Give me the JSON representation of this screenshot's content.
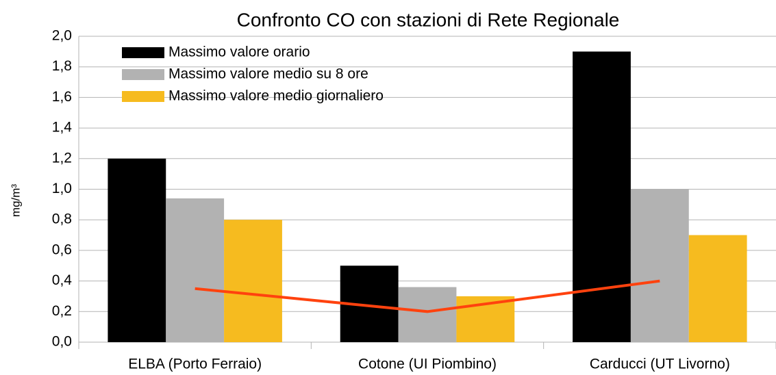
{
  "chart_data": {
    "type": "bar",
    "title": "Confronto CO con stazioni di Rete Regionale",
    "y_label": "mg/m³",
    "categories": [
      "ELBA (Porto Ferraio)",
      "Cotone (UI Piombino)",
      "Carducci (UT Livorno)"
    ],
    "series": [
      {
        "name": "Massimo valore orario",
        "color": "#000000",
        "values": [
          1.2,
          0.5,
          1.9
        ]
      },
      {
        "name": "Massimo valore medio su 8 ore",
        "color": "#b2b2b2",
        "values": [
          0.94,
          0.36,
          1.0
        ]
      },
      {
        "name": "Massimo valore medio giornaliero",
        "color": "#f6bb1f",
        "values": [
          0.8,
          0.3,
          0.7
        ]
      },
      {
        "type": "line",
        "color": "#ff420e",
        "values": [
          0.35,
          0.2,
          0.4
        ]
      }
    ],
    "ylim": [
      0,
      2
    ],
    "yticks": [
      {
        "value": 0,
        "label": "0,0"
      },
      {
        "value": 0.2,
        "label": "0,2"
      },
      {
        "value": 0.4,
        "label": "0,4"
      },
      {
        "value": 0.6,
        "label": "0,6"
      },
      {
        "value": 0.8,
        "label": "0,8"
      },
      {
        "value": 1.0,
        "label": "1,0"
      },
      {
        "value": 1.2,
        "label": "1,2"
      },
      {
        "value": 1.4,
        "label": "1,4"
      },
      {
        "value": 1.6,
        "label": "1,6"
      },
      {
        "value": 1.8,
        "label": "1,8"
      },
      {
        "value": 2.0,
        "label": "2,0"
      }
    ],
    "grid": true,
    "legend": "top-left"
  }
}
